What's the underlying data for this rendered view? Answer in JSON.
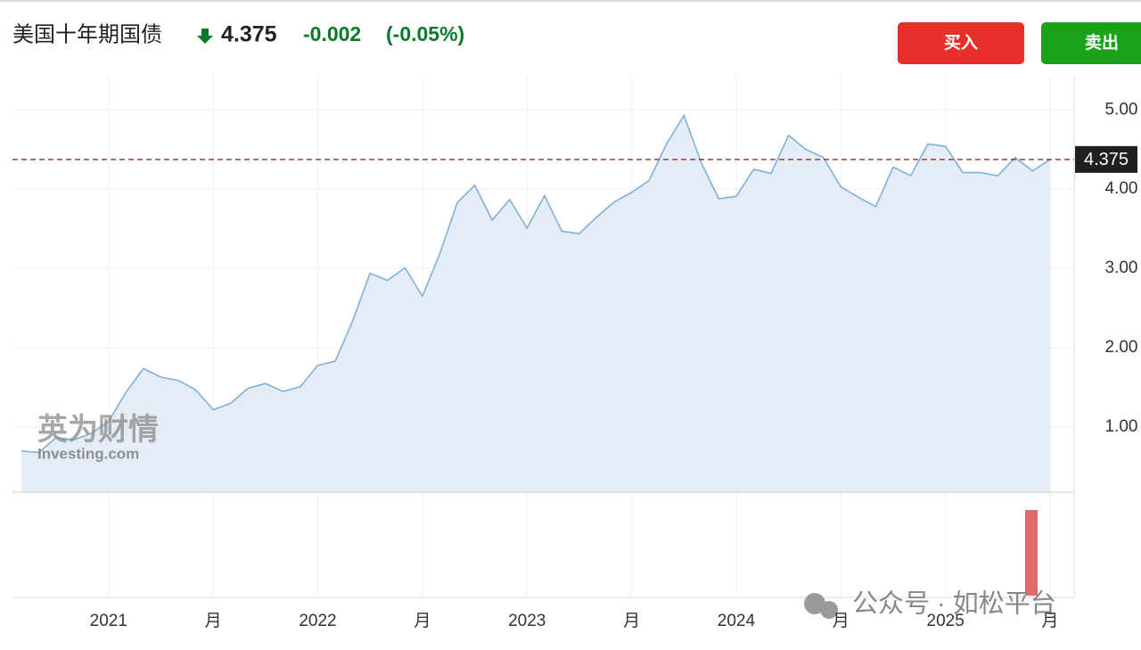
{
  "header": {
    "title": "美国十年期国债",
    "change": "-0.002",
    "change_pct": "(-0.05%)",
    "buy": "买入",
    "sell": "卖出"
  },
  "watermark": {
    "brand_cn": "英为财情",
    "brand_en": "Investing.com",
    "footer": "公众号 · 如松平台"
  },
  "chart_data": {
    "type": "line",
    "categories": [
      null,
      null,
      null,
      null,
      null,
      "2021",
      null,
      null,
      null,
      null,
      null,
      "月",
      null,
      null,
      null,
      null,
      null,
      "2022",
      null,
      null,
      null,
      null,
      null,
      "月",
      null,
      null,
      null,
      null,
      null,
      "2023",
      null,
      null,
      null,
      null,
      null,
      "月",
      null,
      null,
      null,
      null,
      null,
      "2024",
      null,
      null,
      null,
      null,
      null,
      "月",
      null,
      null,
      null,
      null,
      null,
      "2025",
      null,
      null,
      null,
      null,
      null,
      "月"
    ],
    "series": [
      {
        "color": "#7fb0d8",
        "fill": "#e4edf5",
        "values": [
          0.7,
          0.68,
          0.87,
          0.84,
          0.92,
          1.07,
          1.44,
          1.74,
          1.63,
          1.59,
          1.47,
          1.22,
          1.3,
          1.49,
          1.55,
          1.45,
          1.51,
          1.78,
          1.83,
          2.34,
          2.94,
          2.85,
          3.01,
          2.65,
          3.19,
          3.83,
          4.05,
          3.61,
          3.87,
          3.51,
          3.92,
          3.47,
          3.44,
          3.65,
          3.84,
          3.96,
          4.11,
          4.57,
          4.93,
          4.33,
          3.88,
          3.91,
          4.25,
          4.2,
          4.68,
          4.5,
          4.4,
          4.03,
          3.9,
          3.78,
          4.28,
          4.17,
          4.57,
          4.54,
          4.21,
          4.21,
          4.17,
          4.4,
          4.23,
          4.375
        ]
      }
    ],
    "last_value": 4.375,
    "last_color": "#8b1a1a",
    "ylim": [
      0.18,
      5.43
    ],
    "yticks": [
      {
        "value": 1,
        "label": "1.00"
      },
      {
        "value": 2,
        "label": "2.00"
      },
      {
        "value": 3,
        "label": "3.00"
      },
      {
        "value": 4,
        "label": "4.00"
      },
      {
        "value": 5,
        "label": "5.00"
      }
    ],
    "grid": true
  }
}
